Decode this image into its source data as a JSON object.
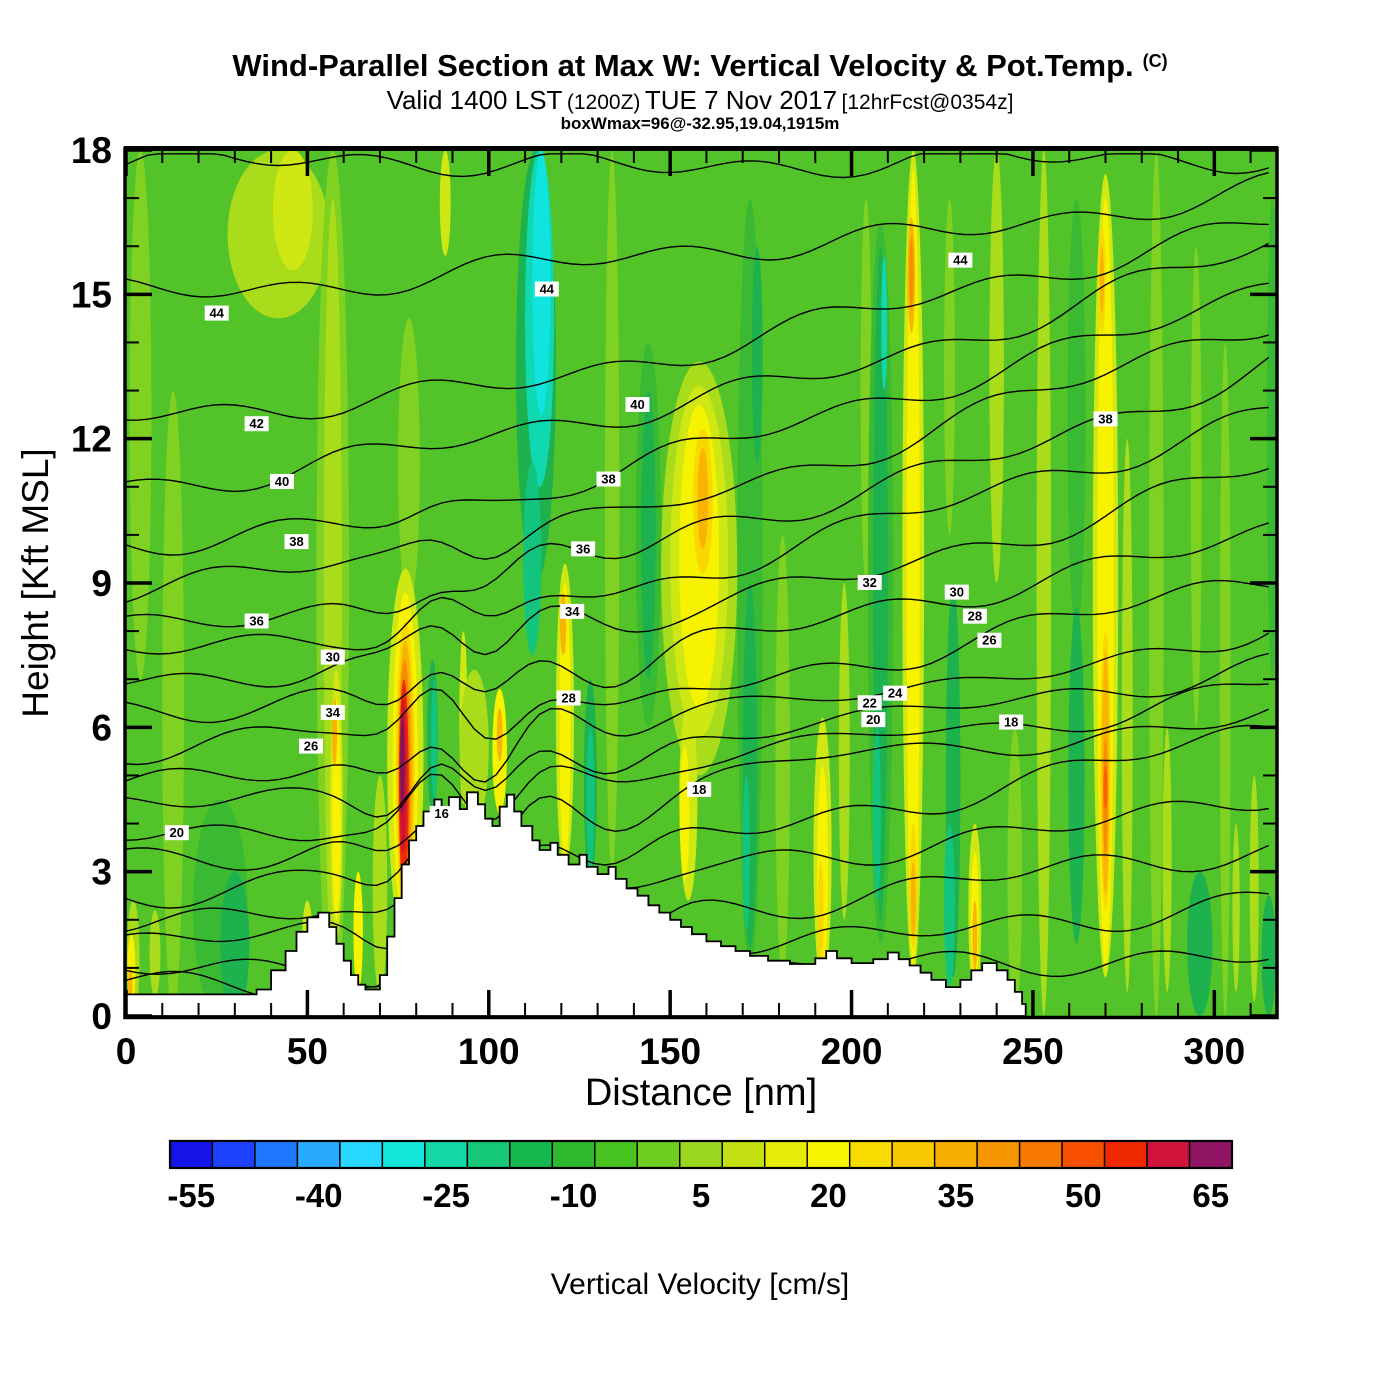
{
  "header": {
    "title": "Wind-Parallel Section at Max W: Vertical Velocity & Pot.Temp.",
    "title_suffix": "(C)",
    "subtitle": {
      "valid": "Valid 1400 LST",
      "zulu": "(1200Z)",
      "date": "TUE 7 Nov 2017",
      "fcst": "[12hrFcst@0354z]"
    },
    "annotation": "boxWmax=96@-32.95,19.04,1915m"
  },
  "chart_data": {
    "type": "heatmap",
    "subtype": "filled-contour-vertical-cross-section",
    "title": "Wind-Parallel Section at Max W: Vertical Velocity & Pot.Temp. (C)",
    "subtitle": "Valid 1400 LST (1200Z) TUE 7 Nov 2017 [12hrFcst@0354z]",
    "annotation": "boxWmax=96@-32.95,19.04,1915m",
    "x_axis": {
      "label": "Distance [nm]",
      "range": [
        0,
        317
      ],
      "ticks": [
        0,
        50,
        100,
        150,
        200,
        250,
        300
      ],
      "minor_tick_step": 10
    },
    "y_axis": {
      "label": "Height [Kft MSL]",
      "range": [
        0,
        18
      ],
      "ticks": [
        0,
        3,
        6,
        9,
        12,
        15,
        18
      ],
      "minor_tick_step": 1
    },
    "colorbar": {
      "label": "Vertical Velocity [cm/s]",
      "tick_values": [
        -55,
        -40,
        -25,
        -10,
        5,
        20,
        35,
        50,
        65
      ],
      "min": -57.5,
      "max": 67.5,
      "step": 5,
      "colors": [
        "#1414E8",
        "#1E42FF",
        "#1E78FF",
        "#28AAFF",
        "#28D8FF",
        "#14E6DC",
        "#14D7A8",
        "#14C878",
        "#14B950",
        "#2DB92D",
        "#46C31E",
        "#6ECD1E",
        "#9BD71E",
        "#C3E114",
        "#E6EB0A",
        "#F8F500",
        "#F8DC00",
        "#F8C800",
        "#F8AE00",
        "#F89600",
        "#F87800",
        "#F85000",
        "#F02800",
        "#D2143C",
        "#8F1464"
      ]
    },
    "contours": {
      "quantity": "Potential Temperature [C]",
      "interval": 2,
      "levels": [
        46,
        44,
        42,
        40,
        38,
        36,
        34,
        32,
        30,
        28,
        26,
        24,
        22,
        20,
        18,
        16,
        14,
        12,
        10,
        8
      ],
      "left_heights_kft": [
        17.7,
        15.1,
        12.4,
        11.1,
        9.8,
        8.9,
        8.1,
        7.5,
        7.0,
        6.3,
        5.6,
        4.9,
        4.3,
        3.8,
        3.2,
        2.6,
        2.0,
        1.5,
        1.0,
        0.6
      ],
      "right_heights_kft": [
        17.8,
        17.2,
        16.6,
        16.0,
        15.3,
        14.5,
        13.6,
        12.6,
        11.4,
        10.2,
        9.1,
        8.2,
        7.4,
        6.9,
        6.4,
        5.9,
        4.7,
        3.5,
        2.4,
        1.3
      ],
      "labels": [
        {
          "t": "44",
          "d": 25,
          "h": 14.6
        },
        {
          "t": "42",
          "d": 36,
          "h": 12.3
        },
        {
          "t": "40",
          "d": 43,
          "h": 11.1
        },
        {
          "t": "38",
          "d": 47,
          "h": 9.85
        },
        {
          "t": "36",
          "d": 36,
          "h": 8.2
        },
        {
          "t": "30",
          "d": 57,
          "h": 7.45
        },
        {
          "t": "34",
          "d": 57,
          "h": 6.3
        },
        {
          "t": "26",
          "d": 51,
          "h": 5.6
        },
        {
          "t": "20",
          "d": 14,
          "h": 3.8
        },
        {
          "t": "44",
          "d": 116,
          "h": 15.1
        },
        {
          "t": "40",
          "d": 141,
          "h": 12.7
        },
        {
          "t": "38",
          "d": 133,
          "h": 11.15
        },
        {
          "t": "36",
          "d": 126,
          "h": 9.7
        },
        {
          "t": "34",
          "d": 123,
          "h": 8.4
        },
        {
          "t": "28",
          "d": 122,
          "h": 6.6
        },
        {
          "t": "16",
          "d": 87,
          "h": 4.2
        },
        {
          "t": "44",
          "d": 230,
          "h": 15.7
        },
        {
          "t": "38",
          "d": 270,
          "h": 12.4
        },
        {
          "t": "32",
          "d": 205,
          "h": 9.0
        },
        {
          "t": "30",
          "d": 229,
          "h": 8.8
        },
        {
          "t": "28",
          "d": 234,
          "h": 8.3
        },
        {
          "t": "26",
          "d": 238,
          "h": 7.8
        },
        {
          "t": "24",
          "d": 212,
          "h": 6.7
        },
        {
          "t": "22",
          "d": 205,
          "h": 6.5
        },
        {
          "t": "20",
          "d": 206,
          "h": 6.15
        },
        {
          "t": "18",
          "d": 244,
          "h": 6.1
        },
        {
          "t": "18",
          "d": 158,
          "h": 4.7
        }
      ]
    },
    "terrain_profile_steps": [
      [
        0,
        0.45
      ],
      [
        36,
        0.55
      ],
      [
        40,
        0.95
      ],
      [
        44,
        1.35
      ],
      [
        47,
        1.75
      ],
      [
        50,
        2.05
      ],
      [
        53,
        2.15
      ],
      [
        56,
        1.85
      ],
      [
        58,
        1.5
      ],
      [
        60,
        1.15
      ],
      [
        62,
        0.85
      ],
      [
        64,
        0.65
      ],
      [
        66,
        0.55
      ],
      [
        70,
        0.85
      ],
      [
        72,
        1.65
      ],
      [
        74,
        2.45
      ],
      [
        76,
        3.15
      ],
      [
        78,
        3.65
      ],
      [
        80,
        3.95
      ],
      [
        82,
        4.25
      ],
      [
        85,
        4.5
      ],
      [
        87,
        4.2
      ],
      [
        89,
        4.55
      ],
      [
        92,
        4.3
      ],
      [
        94,
        4.65
      ],
      [
        97,
        4.4
      ],
      [
        99,
        4.1
      ],
      [
        101,
        3.95
      ],
      [
        103,
        4.35
      ],
      [
        105,
        4.6
      ],
      [
        107,
        4.25
      ],
      [
        109,
        3.95
      ],
      [
        112,
        3.65
      ],
      [
        114,
        3.45
      ],
      [
        117,
        3.6
      ],
      [
        119,
        3.35
      ],
      [
        122,
        3.15
      ],
      [
        125,
        3.35
      ],
      [
        127,
        3.1
      ],
      [
        130,
        2.95
      ],
      [
        133,
        3.1
      ],
      [
        135,
        2.85
      ],
      [
        138,
        2.65
      ],
      [
        141,
        2.5
      ],
      [
        144,
        2.3
      ],
      [
        147,
        2.15
      ],
      [
        150,
        2.0
      ],
      [
        153,
        1.85
      ],
      [
        156,
        1.7
      ],
      [
        160,
        1.55
      ],
      [
        164,
        1.45
      ],
      [
        168,
        1.35
      ],
      [
        172,
        1.25
      ],
      [
        177,
        1.15
      ],
      [
        183,
        1.08
      ],
      [
        190,
        1.2
      ],
      [
        193,
        1.35
      ],
      [
        196,
        1.2
      ],
      [
        200,
        1.1
      ],
      [
        206,
        1.18
      ],
      [
        210,
        1.32
      ],
      [
        213,
        1.18
      ],
      [
        216,
        1.05
      ],
      [
        219,
        0.9
      ],
      [
        222,
        0.75
      ],
      [
        226,
        0.6
      ],
      [
        230,
        0.75
      ],
      [
        233,
        0.95
      ],
      [
        236,
        1.1
      ],
      [
        240,
        0.95
      ],
      [
        243,
        0.75
      ],
      [
        245,
        0.5
      ],
      [
        247,
        0.25
      ],
      [
        248,
        0
      ]
    ],
    "field_palette": {
      "g0": "#52C42A",
      "g1": "#7FD122",
      "g2": "#A9DC1A",
      "g3": "#CFE712",
      "y0": "#F6F200",
      "y1": "#F8D800",
      "o0": "#F8B400",
      "o1": "#F88C00",
      "o2": "#F86000",
      "r0": "#EE2A06",
      "r1": "#CC1238",
      "p1": "#7C1460",
      "d0": "#3ABA32",
      "d1": "#1DB24E",
      "t0": "#12C47E",
      "c0": "#10D8B0",
      "c1": "#0FE4DE"
    },
    "field_base_color": "g0",
    "field_streaks": [
      {
        "d": 4,
        "w": 6,
        "h0": 7,
        "h1": 18,
        "c": "g1"
      },
      {
        "d": 13,
        "w": 6,
        "h0": 0,
        "h1": 13,
        "c": "g1"
      },
      {
        "d": 8,
        "w": 3,
        "h0": 0.4,
        "h1": 2.2,
        "c": "g2"
      },
      {
        "d": 26,
        "w": 15,
        "h0": 0,
        "h1": 4.5,
        "c": "d0"
      },
      {
        "d": 30,
        "w": 8,
        "h0": 0,
        "h1": 3,
        "c": "d1"
      },
      {
        "d": 2,
        "w": 3.5,
        "h0": 0,
        "h1": 2.4,
        "c": "g2"
      },
      {
        "d": 1.5,
        "w": 2.2,
        "h0": 0.2,
        "h1": 1.7,
        "c": "y0"
      },
      {
        "d": 1.2,
        "w": 1.2,
        "h0": 0.3,
        "h1": 1.0,
        "c": "o0"
      },
      {
        "d": 42,
        "w": 28,
        "h0": 14.5,
        "h1": 18,
        "c": "g2"
      },
      {
        "d": 46,
        "w": 11,
        "h0": 15.5,
        "h1": 18,
        "c": "g3"
      },
      {
        "d": 50,
        "w": 3,
        "h0": 0.5,
        "h1": 2.4,
        "c": "g3"
      },
      {
        "d": 57,
        "w": 9,
        "h0": 0,
        "h1": 18,
        "c": "g1"
      },
      {
        "d": 57,
        "w": 5,
        "h0": 1,
        "h1": 17,
        "c": "g2"
      },
      {
        "d": 58,
        "w": 3.5,
        "h0": 1.6,
        "h1": 7.2,
        "c": "g3"
      },
      {
        "d": 58,
        "w": 2.4,
        "h0": 2,
        "h1": 6.6,
        "c": "y0"
      },
      {
        "d": 57.5,
        "w": 1.4,
        "h0": 5.2,
        "h1": 6.6,
        "c": "o0"
      },
      {
        "d": 64,
        "w": 2.6,
        "h0": 0.5,
        "h1": 3,
        "c": "y0"
      },
      {
        "d": 70,
        "w": 4,
        "h0": 0.4,
        "h1": 5,
        "c": "g2"
      },
      {
        "d": 78,
        "w": 6,
        "h0": 8.5,
        "h1": 14.5,
        "c": "g1"
      },
      {
        "d": 88,
        "w": 3,
        "h0": 15.8,
        "h1": 18,
        "c": "g3"
      },
      {
        "d": 77,
        "w": 10,
        "h0": 1.5,
        "h1": 9.3,
        "c": "g3"
      },
      {
        "d": 77,
        "w": 7,
        "h0": 1.8,
        "h1": 8.8,
        "c": "y0"
      },
      {
        "d": 77,
        "w": 5.2,
        "h0": 2,
        "h1": 8.2,
        "c": "y1"
      },
      {
        "d": 77,
        "w": 4.2,
        "h0": 2.2,
        "h1": 7.8,
        "c": "o0"
      },
      {
        "d": 76.8,
        "w": 3.4,
        "h0": 2.4,
        "h1": 7.4,
        "c": "o1"
      },
      {
        "d": 76.6,
        "w": 2.7,
        "h0": 2.6,
        "h1": 7.0,
        "c": "r0"
      },
      {
        "d": 76.4,
        "w": 1.9,
        "h0": 3.4,
        "h1": 6.6,
        "c": "r1"
      },
      {
        "d": 76.2,
        "w": 1.1,
        "h0": 4.2,
        "h1": 6.3,
        "c": "p1"
      },
      {
        "d": 84.5,
        "w": 3,
        "h0": 4.2,
        "h1": 7.4,
        "c": "d1"
      },
      {
        "d": 85,
        "w": 1.8,
        "h0": 4.5,
        "h1": 7,
        "c": "t0"
      },
      {
        "d": 93,
        "w": 2.2,
        "h0": 4.4,
        "h1": 8,
        "c": "g3"
      },
      {
        "d": 96,
        "w": 8,
        "h0": 4,
        "h1": 7.2,
        "c": "g2"
      },
      {
        "d": 103,
        "w": 4,
        "h0": 4.2,
        "h1": 6.8,
        "c": "y0"
      },
      {
        "d": 103,
        "w": 1.6,
        "h0": 5.3,
        "h1": 6.4,
        "c": "o0"
      },
      {
        "d": 113,
        "w": 11,
        "h0": 9,
        "h1": 18,
        "c": "d1"
      },
      {
        "d": 114,
        "w": 8,
        "h0": 11,
        "h1": 18,
        "c": "c0"
      },
      {
        "d": 114.5,
        "w": 5,
        "h0": 12.5,
        "h1": 18,
        "c": "c1"
      },
      {
        "d": 112,
        "w": 5,
        "h0": 7.5,
        "h1": 11.5,
        "c": "t0"
      },
      {
        "d": 121,
        "w": 5,
        "h0": 3,
        "h1": 9.4,
        "c": "g3"
      },
      {
        "d": 121,
        "w": 3,
        "h0": 3.2,
        "h1": 9,
        "c": "y0"
      },
      {
        "d": 120.5,
        "w": 1.7,
        "h0": 7.5,
        "h1": 8.8,
        "c": "o0"
      },
      {
        "d": 128,
        "w": 3.6,
        "h0": 2.8,
        "h1": 7,
        "c": "d1"
      },
      {
        "d": 128,
        "w": 2.2,
        "h0": 3,
        "h1": 6,
        "c": "t0"
      },
      {
        "d": 134,
        "w": 4,
        "h0": 3,
        "h1": 18,
        "c": "g1"
      },
      {
        "d": 144,
        "w": 7,
        "h0": 6,
        "h1": 14,
        "c": "d0"
      },
      {
        "d": 144,
        "w": 4,
        "h0": 7,
        "h1": 13,
        "c": "d1"
      },
      {
        "d": 158,
        "w": 21,
        "h0": 5,
        "h1": 13.6,
        "c": "g2"
      },
      {
        "d": 158,
        "w": 16,
        "h0": 5.8,
        "h1": 13.1,
        "c": "g3"
      },
      {
        "d": 158,
        "w": 11,
        "h0": 6.4,
        "h1": 12.7,
        "c": "y0"
      },
      {
        "d": 159,
        "w": 5.5,
        "h0": 9.2,
        "h1": 12.2,
        "c": "y1"
      },
      {
        "d": 159,
        "w": 3,
        "h0": 9.7,
        "h1": 11.8,
        "c": "o0"
      },
      {
        "d": 155,
        "w": 5,
        "h0": 2.4,
        "h1": 6.6,
        "c": "g3"
      },
      {
        "d": 154,
        "w": 2.6,
        "h0": 2.8,
        "h1": 5.6,
        "c": "y0"
      },
      {
        "d": 172,
        "w": 7,
        "h0": 1,
        "h1": 17,
        "c": "d0"
      },
      {
        "d": 172,
        "w": 4,
        "h0": 1.4,
        "h1": 9,
        "c": "d1"
      },
      {
        "d": 171,
        "w": 2,
        "h0": 1.8,
        "h1": 5,
        "c": "t0"
      },
      {
        "d": 174,
        "w": 3,
        "h0": 11.5,
        "h1": 16,
        "c": "d1"
      },
      {
        "d": 181,
        "w": 4,
        "h0": 0.8,
        "h1": 10,
        "c": "g1"
      },
      {
        "d": 192,
        "w": 5,
        "h0": 0.6,
        "h1": 6.2,
        "c": "g3"
      },
      {
        "d": 192,
        "w": 3,
        "h0": 0.8,
        "h1": 5.2,
        "c": "y0"
      },
      {
        "d": 191.5,
        "w": 1.6,
        "h0": 1,
        "h1": 3.2,
        "c": "y1"
      },
      {
        "d": 198,
        "w": 3,
        "h0": 2,
        "h1": 9,
        "c": "g2"
      },
      {
        "d": 204,
        "w": 3,
        "h0": 9,
        "h1": 17,
        "c": "g1"
      },
      {
        "d": 208,
        "w": 7,
        "h0": 1.5,
        "h1": 16.5,
        "c": "d0"
      },
      {
        "d": 208,
        "w": 4,
        "h0": 2,
        "h1": 16,
        "c": "d1"
      },
      {
        "d": 209,
        "w": 1.6,
        "h0": 13,
        "h1": 15.8,
        "c": "c0"
      },
      {
        "d": 207,
        "w": 2.2,
        "h0": 2.4,
        "h1": 6,
        "c": "t0"
      },
      {
        "d": 217,
        "w": 6,
        "h0": 0.8,
        "h1": 18,
        "c": "g3"
      },
      {
        "d": 217,
        "w": 3.6,
        "h0": 1,
        "h1": 17.6,
        "c": "y0"
      },
      {
        "d": 216.5,
        "w": 2,
        "h0": 14.2,
        "h1": 16.6,
        "c": "o0"
      },
      {
        "d": 216.5,
        "w": 1.2,
        "h0": 14.7,
        "h1": 16.2,
        "c": "o1"
      },
      {
        "d": 217,
        "w": 2,
        "h0": 1.4,
        "h1": 4,
        "c": "y1"
      },
      {
        "d": 217,
        "w": 1.4,
        "h0": 1.6,
        "h1": 3.2,
        "c": "o0"
      },
      {
        "d": 228,
        "w": 4,
        "h0": 0.8,
        "h1": 9,
        "c": "d1"
      },
      {
        "d": 227,
        "w": 3,
        "h0": 0.6,
        "h1": 4,
        "c": "t0"
      },
      {
        "d": 227,
        "w": 3,
        "h0": 10,
        "h1": 17,
        "c": "g1"
      },
      {
        "d": 234,
        "w": 3.6,
        "h0": 0.4,
        "h1": 4,
        "c": "g3"
      },
      {
        "d": 234,
        "w": 2.2,
        "h0": 0.6,
        "h1": 3.4,
        "c": "y0"
      },
      {
        "d": 234,
        "w": 1.3,
        "h0": 0.9,
        "h1": 2.4,
        "c": "o0"
      },
      {
        "d": 240,
        "w": 4,
        "h0": 9,
        "h1": 18,
        "c": "g2"
      },
      {
        "d": 245,
        "w": 4,
        "h0": 0,
        "h1": 6,
        "c": "g1"
      },
      {
        "d": 253,
        "w": 4,
        "h0": 0,
        "h1": 18,
        "c": "g2"
      },
      {
        "d": 262,
        "w": 5,
        "h0": 8,
        "h1": 17,
        "c": "d0"
      },
      {
        "d": 262,
        "w": 4.5,
        "h0": 1.5,
        "h1": 8.5,
        "c": "d1"
      },
      {
        "d": 270,
        "w": 7,
        "h0": 0.8,
        "h1": 17.5,
        "c": "g3"
      },
      {
        "d": 270,
        "w": 4.5,
        "h0": 1,
        "h1": 17,
        "c": "y0"
      },
      {
        "d": 270,
        "w": 3,
        "h0": 2.2,
        "h1": 8,
        "c": "y1"
      },
      {
        "d": 270,
        "w": 2,
        "h0": 2.5,
        "h1": 7.6,
        "c": "o0"
      },
      {
        "d": 270,
        "w": 1.3,
        "h0": 3.3,
        "h1": 5.8,
        "c": "o1"
      },
      {
        "d": 270,
        "w": 0.8,
        "h0": 4.3,
        "h1": 5.2,
        "c": "o2"
      },
      {
        "d": 269,
        "w": 2,
        "h0": 14.2,
        "h1": 16.4,
        "c": "y1"
      },
      {
        "d": 269,
        "w": 1.2,
        "h0": 14.6,
        "h1": 16,
        "c": "o0"
      },
      {
        "d": 276,
        "w": 3,
        "h0": 0.5,
        "h1": 12,
        "c": "g2"
      },
      {
        "d": 284,
        "w": 4,
        "h0": 0,
        "h1": 18,
        "c": "g1"
      },
      {
        "d": 287,
        "w": 2.5,
        "h0": 0.5,
        "h1": 6,
        "c": "g2"
      },
      {
        "d": 296,
        "w": 7,
        "h0": 0,
        "h1": 3,
        "c": "d1"
      },
      {
        "d": 295,
        "w": 3,
        "h0": 6,
        "h1": 16,
        "c": "g1"
      },
      {
        "d": 303,
        "w": 3,
        "h0": 0,
        "h1": 14,
        "c": "g1"
      },
      {
        "d": 306,
        "w": 2,
        "h0": 0.5,
        "h1": 4,
        "c": "g2"
      },
      {
        "d": 311,
        "w": 2.5,
        "h0": 0.3,
        "h1": 5,
        "c": "g2"
      },
      {
        "d": 315,
        "w": 4,
        "h0": 0,
        "h1": 2.5,
        "c": "d1"
      },
      {
        "d": 316,
        "w": 3,
        "h0": 7,
        "h1": 17,
        "c": "d0"
      }
    ]
  }
}
